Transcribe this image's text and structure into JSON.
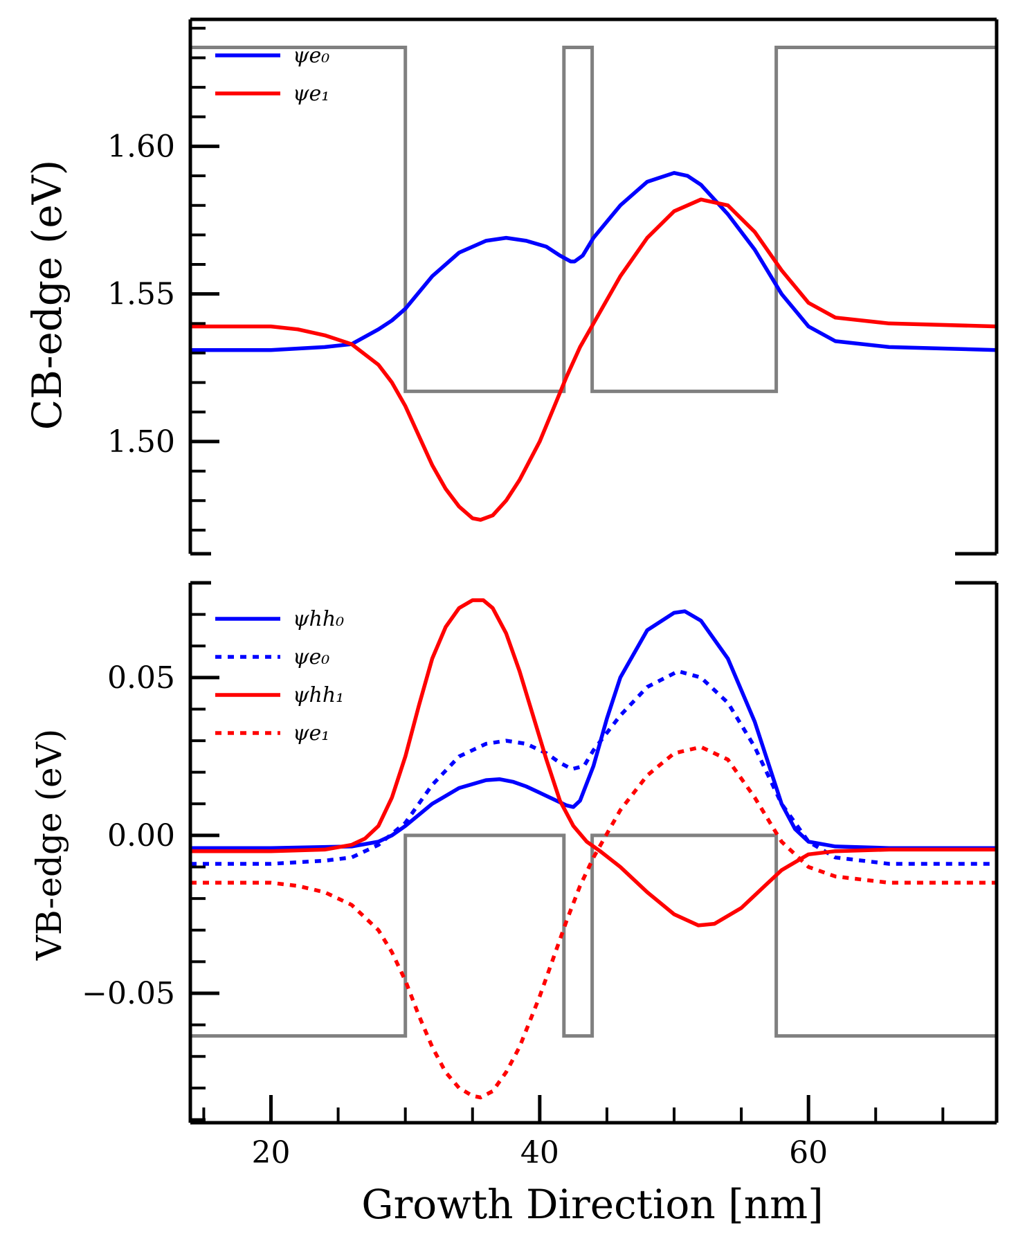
{
  "chart_data": [
    {
      "type": "line",
      "panel": "top",
      "ylabel": "CB-edge (eV)",
      "xlabel": "",
      "xlim": [
        14,
        74
      ],
      "ylim": [
        1.462,
        1.643
      ],
      "yticks_major": [
        1.5,
        1.55,
        1.6
      ],
      "ytick_labels": [
        "1.50",
        "1.55",
        "1.60"
      ],
      "yticks_minor_step": 0.01,
      "grid": false,
      "legend_position": "top-left",
      "legend": [
        {
          "label": "ψe₀",
          "color": "#0000ff",
          "dash": "solid"
        },
        {
          "label": "ψe₁",
          "color": "#ff0000",
          "dash": "solid"
        }
      ],
      "band_edge": {
        "color": "#808080",
        "x": [
          14,
          30,
          30,
          41.8,
          41.8,
          43.9,
          43.9,
          57.6,
          57.6,
          74
        ],
        "y": [
          1.6335,
          1.6335,
          1.517,
          1.517,
          1.6335,
          1.6335,
          1.517,
          1.517,
          1.6335,
          1.6335
        ]
      },
      "series": [
        {
          "name": "ψe₀",
          "color": "#0000ff",
          "dash": "solid",
          "x": [
            14,
            20,
            24,
            26,
            28,
            29,
            30,
            32,
            34,
            36,
            37.5,
            39,
            40.5,
            41.5,
            42.3,
            42.6,
            43.2,
            44,
            46,
            48,
            50,
            51,
            52,
            54,
            56,
            58,
            60,
            62,
            66,
            74
          ],
          "y": [
            1.531,
            1.531,
            1.532,
            1.533,
            1.538,
            1.541,
            1.545,
            1.556,
            1.564,
            1.568,
            1.569,
            1.568,
            1.566,
            1.563,
            1.561,
            1.561,
            1.563,
            1.569,
            1.58,
            1.588,
            1.591,
            1.59,
            1.587,
            1.577,
            1.565,
            1.55,
            1.539,
            1.534,
            1.532,
            1.531
          ]
        },
        {
          "name": "ψe₁",
          "color": "#ff0000",
          "dash": "solid",
          "x": [
            14,
            20,
            22,
            24,
            26,
            28,
            29,
            30,
            31,
            32,
            33,
            34,
            35,
            35.6,
            36.5,
            37.5,
            38.5,
            40,
            41,
            42,
            43,
            44,
            46,
            48,
            50,
            52,
            54,
            56,
            58,
            60,
            62,
            66,
            74
          ],
          "y": [
            1.539,
            1.539,
            1.538,
            1.536,
            1.533,
            1.526,
            1.52,
            1.512,
            1.502,
            1.492,
            1.484,
            1.478,
            1.474,
            1.4735,
            1.475,
            1.48,
            1.487,
            1.5,
            1.511,
            1.522,
            1.532,
            1.54,
            1.556,
            1.569,
            1.578,
            1.582,
            1.58,
            1.571,
            1.558,
            1.547,
            1.542,
            1.54,
            1.539
          ]
        }
      ]
    },
    {
      "type": "line",
      "panel": "bottom",
      "ylabel": "VB-edge (eV)",
      "xlabel": "Growth Direction [nm]",
      "xlim": [
        14,
        74
      ],
      "ylim": [
        -0.091,
        0.08
      ],
      "xticks_major": [
        20,
        40,
        60
      ],
      "xtick_labels": [
        "20",
        "40",
        "60"
      ],
      "xticks_minor_step": 5,
      "yticks_major": [
        -0.05,
        0.0,
        0.05
      ],
      "ytick_labels": [
        "−0.05",
        "0.00",
        "0.05"
      ],
      "yticks_minor_step": 0.01,
      "grid": false,
      "legend_position": "top-left",
      "legend": [
        {
          "label": "ψhh₀",
          "color": "#0000ff",
          "dash": "solid"
        },
        {
          "label": "ψe₀",
          "color": "#0000ff",
          "dash": "dotted"
        },
        {
          "label": "ψhh₁",
          "color": "#ff0000",
          "dash": "solid"
        },
        {
          "label": "ψe₁",
          "color": "#ff0000",
          "dash": "dotted"
        }
      ],
      "band_edge": {
        "color": "#808080",
        "x": [
          14,
          30,
          30,
          41.8,
          41.8,
          43.9,
          43.9,
          57.6,
          57.6,
          74
        ],
        "y": [
          -0.0635,
          -0.0635,
          0.0,
          0.0,
          -0.0635,
          -0.0635,
          0.0,
          0.0,
          -0.0635,
          -0.0635
        ]
      },
      "series": [
        {
          "name": "ψhh₀",
          "color": "#0000ff",
          "dash": "solid",
          "x": [
            14,
            20,
            26,
            28,
            29,
            30,
            32,
            34,
            36,
            37,
            38,
            39,
            40,
            41,
            42,
            42.5,
            43,
            44,
            45,
            46,
            48,
            50,
            50.8,
            52,
            54,
            56,
            57,
            58,
            59,
            60,
            62,
            66,
            74
          ],
          "y": [
            -0.004,
            -0.004,
            -0.0035,
            -0.002,
            0.0,
            0.003,
            0.01,
            0.015,
            0.0175,
            0.0178,
            0.017,
            0.0155,
            0.0135,
            0.0115,
            0.0095,
            0.009,
            0.011,
            0.022,
            0.037,
            0.05,
            0.065,
            0.0705,
            0.071,
            0.068,
            0.056,
            0.036,
            0.023,
            0.01,
            0.002,
            -0.002,
            -0.0035,
            -0.004,
            -0.004
          ]
        },
        {
          "name": "ψe₀",
          "color": "#0000ff",
          "dash": "dotted",
          "x": [
            14,
            20,
            24,
            26,
            28,
            30,
            32,
            34,
            36,
            37.5,
            39,
            40.5,
            41.5,
            42.4,
            43.3,
            44,
            46,
            48,
            50.3,
            52,
            54,
            56,
            58,
            60,
            62,
            66,
            74
          ],
          "y": [
            -0.009,
            -0.009,
            -0.008,
            -0.007,
            -0.003,
            0.004,
            0.016,
            0.025,
            0.029,
            0.03,
            0.029,
            0.026,
            0.023,
            0.021,
            0.022,
            0.027,
            0.038,
            0.047,
            0.052,
            0.05,
            0.042,
            0.028,
            0.01,
            -0.002,
            -0.007,
            -0.009,
            -0.009
          ]
        },
        {
          "name": "ψhh₁",
          "color": "#ff0000",
          "dash": "solid",
          "x": [
            14,
            20,
            24,
            26,
            27,
            28,
            29,
            30,
            31,
            32,
            33,
            34,
            35,
            35.8,
            36.5,
            37.5,
            38.5,
            39.5,
            40.5,
            41.5,
            42.5,
            43.5,
            44.5,
            46,
            48,
            50,
            51.8,
            53,
            55,
            57,
            58,
            60,
            62,
            66,
            74
          ],
          "y": [
            -0.005,
            -0.005,
            -0.0045,
            -0.003,
            -0.001,
            0.003,
            0.012,
            0.025,
            0.041,
            0.056,
            0.066,
            0.072,
            0.0745,
            0.0745,
            0.072,
            0.064,
            0.052,
            0.038,
            0.024,
            0.011,
            0.003,
            -0.002,
            -0.005,
            -0.01,
            -0.018,
            -0.025,
            -0.0285,
            -0.028,
            -0.023,
            -0.015,
            -0.011,
            -0.006,
            -0.005,
            -0.0045,
            -0.0045
          ]
        },
        {
          "name": "ψe₁",
          "color": "#ff0000",
          "dash": "dotted",
          "x": [
            14,
            20,
            22,
            24,
            26,
            28,
            29,
            30,
            31,
            32,
            33,
            34,
            35,
            35.6,
            36.5,
            37.5,
            38.5,
            40,
            41,
            42,
            43,
            44,
            46,
            48,
            50,
            52,
            54,
            56,
            58,
            60,
            62,
            66,
            74
          ],
          "y": [
            -0.015,
            -0.015,
            -0.016,
            -0.018,
            -0.022,
            -0.03,
            -0.037,
            -0.046,
            -0.057,
            -0.067,
            -0.075,
            -0.08,
            -0.0825,
            -0.083,
            -0.081,
            -0.075,
            -0.067,
            -0.051,
            -0.039,
            -0.027,
            -0.016,
            -0.007,
            0.008,
            0.019,
            0.026,
            0.028,
            0.024,
            0.012,
            -0.002,
            -0.01,
            -0.013,
            -0.015,
            -0.015
          ]
        }
      ]
    }
  ]
}
